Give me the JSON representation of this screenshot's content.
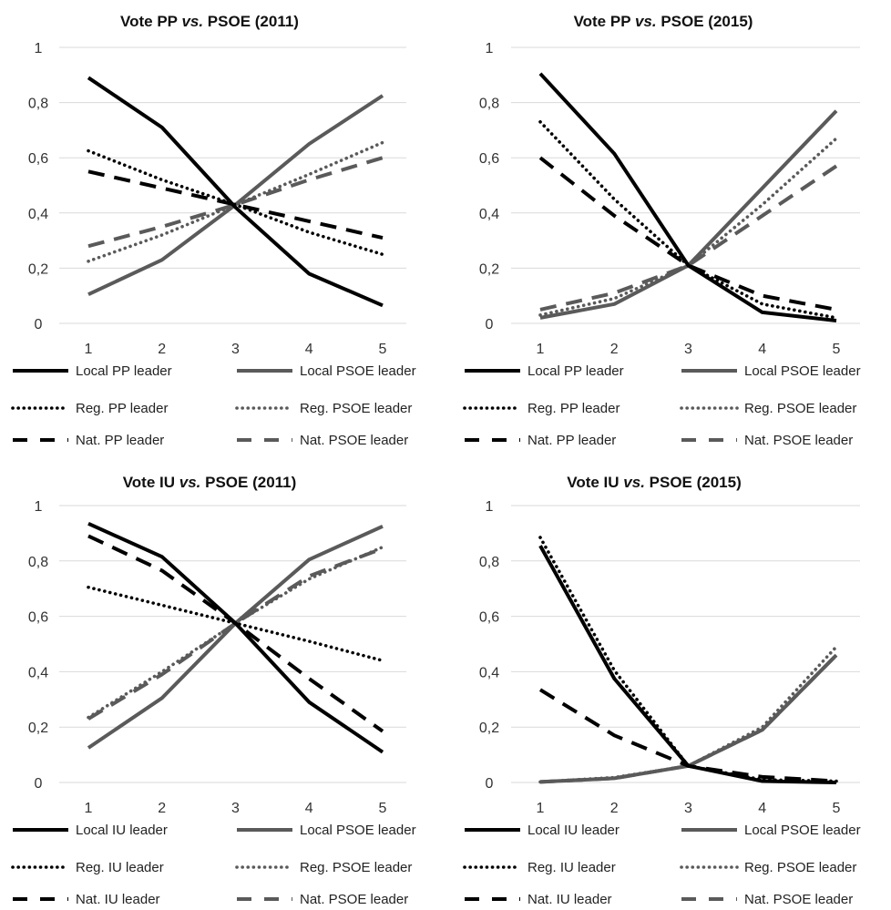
{
  "colors": {
    "pp_iu": "#000000",
    "psoe": "#5a5a5a",
    "grid": "#d9d9d9"
  },
  "chart_data": [
    {
      "type": "line",
      "title_parts": [
        "Vote PP ",
        "vs.",
        " PSOE (2011)"
      ],
      "x": [
        1,
        2,
        3,
        4,
        5
      ],
      "ylim": [
        0,
        1
      ],
      "y_ticks": [
        "0",
        "0,2",
        "0,4",
        "0,6",
        "0,8",
        "1"
      ],
      "grid": true,
      "legend_position": "bottom",
      "series": [
        {
          "name": "Local PP leader",
          "style": "solid",
          "color": "#000000",
          "values": [
            0.89,
            0.71,
            0.42,
            0.18,
            0.065
          ]
        },
        {
          "name": "Local PSOE leader",
          "style": "solid",
          "color": "#5a5a5a",
          "values": [
            0.105,
            0.23,
            0.43,
            0.65,
            0.825
          ]
        },
        {
          "name": "Reg. PP leader",
          "style": "dotted",
          "color": "#000000",
          "values": [
            0.625,
            0.52,
            0.43,
            0.33,
            0.25
          ]
        },
        {
          "name": "Reg. PSOE leader",
          "style": "dotted",
          "color": "#5a5a5a",
          "values": [
            0.225,
            0.32,
            0.43,
            0.54,
            0.655
          ]
        },
        {
          "name": "Nat. PP leader",
          "style": "dashed",
          "color": "#000000",
          "values": [
            0.55,
            0.49,
            0.43,
            0.37,
            0.31
          ]
        },
        {
          "name": "Nat. PSOE leader",
          "style": "dashed",
          "color": "#5a5a5a",
          "values": [
            0.28,
            0.35,
            0.43,
            0.52,
            0.6
          ]
        }
      ]
    },
    {
      "type": "line",
      "title_parts": [
        "Vote PP ",
        "vs.",
        " PSOE (2015)"
      ],
      "x": [
        1,
        2,
        3,
        4,
        5
      ],
      "ylim": [
        0,
        1
      ],
      "y_ticks": [
        "0",
        "0,2",
        "0,4",
        "0,6",
        "0,8",
        "1"
      ],
      "grid": true,
      "legend_position": "bottom",
      "series": [
        {
          "name": "Local PP leader",
          "style": "solid",
          "color": "#000000",
          "values": [
            0.905,
            0.615,
            0.21,
            0.04,
            0.01
          ]
        },
        {
          "name": "Local PSOE leader",
          "style": "solid",
          "color": "#5a5a5a",
          "values": [
            0.02,
            0.07,
            0.21,
            0.49,
            0.77
          ]
        },
        {
          "name": "Reg. PP leader",
          "style": "dotted",
          "color": "#000000",
          "values": [
            0.73,
            0.45,
            0.21,
            0.07,
            0.02
          ]
        },
        {
          "name": "Reg. PSOE leader",
          "style": "dotted",
          "color": "#5a5a5a",
          "values": [
            0.03,
            0.09,
            0.21,
            0.43,
            0.67
          ]
        },
        {
          "name": "Nat. PP leader",
          "style": "dashed",
          "color": "#000000",
          "values": [
            0.6,
            0.39,
            0.21,
            0.1,
            0.05
          ]
        },
        {
          "name": "Nat. PSOE leader",
          "style": "dashed",
          "color": "#5a5a5a",
          "values": [
            0.05,
            0.11,
            0.21,
            0.39,
            0.57
          ]
        }
      ]
    },
    {
      "type": "line",
      "title_parts": [
        "Vote IU ",
        "vs.",
        " PSOE (2011)"
      ],
      "x": [
        1,
        2,
        3,
        4,
        5
      ],
      "ylim": [
        0,
        1
      ],
      "y_ticks": [
        "0",
        "0,2",
        "0,4",
        "0,6",
        "0,8",
        "1"
      ],
      "grid": true,
      "legend_position": "bottom",
      "series": [
        {
          "name": "Local IU leader",
          "style": "solid",
          "color": "#000000",
          "values": [
            0.935,
            0.815,
            0.575,
            0.29,
            0.11
          ]
        },
        {
          "name": "Local PSOE leader",
          "style": "solid",
          "color": "#5a5a5a",
          "values": [
            0.125,
            0.305,
            0.575,
            0.805,
            0.925
          ]
        },
        {
          "name": "Reg. IU leader",
          "style": "dotted",
          "color": "#000000",
          "values": [
            0.705,
            0.64,
            0.575,
            0.51,
            0.44
          ]
        },
        {
          "name": "Reg. PSOE leader",
          "style": "dotted",
          "color": "#5a5a5a",
          "values": [
            0.235,
            0.4,
            0.575,
            0.735,
            0.85
          ]
        },
        {
          "name": "Nat. IU leader",
          "style": "dashed",
          "color": "#000000",
          "values": [
            0.89,
            0.765,
            0.575,
            0.375,
            0.185
          ]
        },
        {
          "name": "Nat. PSOE leader",
          "style": "dashed",
          "color": "#5a5a5a",
          "values": [
            0.23,
            0.39,
            0.575,
            0.745,
            0.845
          ]
        }
      ]
    },
    {
      "type": "line",
      "title_parts": [
        "Vote IU ",
        "vs.",
        " PSOE (2015)"
      ],
      "x": [
        1,
        2,
        3,
        4,
        5
      ],
      "ylim": [
        0,
        1
      ],
      "y_ticks": [
        "0",
        "0,2",
        "0,4",
        "0,6",
        "0,8",
        "1"
      ],
      "grid": true,
      "legend_position": "bottom",
      "series": [
        {
          "name": "Local IU leader",
          "style": "solid",
          "color": "#000000",
          "values": [
            0.855,
            0.375,
            0.06,
            0.005,
            0.0
          ]
        },
        {
          "name": "Local PSOE leader",
          "style": "solid",
          "color": "#5a5a5a",
          "values": [
            0.002,
            0.015,
            0.06,
            0.19,
            0.46
          ]
        },
        {
          "name": "Reg. IU leader",
          "style": "dotted",
          "color": "#000000",
          "values": [
            0.885,
            0.405,
            0.06,
            0.01,
            0.005
          ]
        },
        {
          "name": "Reg. PSOE leader",
          "style": "dotted",
          "color": "#5a5a5a",
          "values": [
            0.002,
            0.018,
            0.06,
            0.2,
            0.49
          ]
        },
        {
          "name": "Nat. IU leader",
          "style": "dashed",
          "color": "#000000",
          "values": [
            0.335,
            0.17,
            0.06,
            0.02,
            0.005
          ]
        },
        {
          "name": "Nat. PSOE leader",
          "style": "dashed",
          "color": "#5a5a5a",
          "values": [
            0.002,
            0.015,
            0.06,
            0.19,
            0.46
          ]
        }
      ]
    }
  ]
}
